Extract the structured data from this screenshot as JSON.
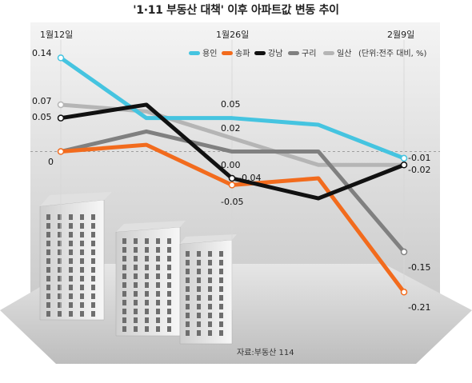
{
  "title": "'1·11 부동산 대책' 이후 아파트값 변동 추이",
  "unit_note": "(단위:전주 대비, %)",
  "source": "자료:부동산 114",
  "chart_data": {
    "type": "line",
    "title": "'1·11 부동산 대책' 이후 아파트값 변동 추이",
    "x": [
      "1월12일",
      "",
      "1월26일",
      "",
      "2월9일"
    ],
    "date_labels": [
      "1월12일",
      "1월26일",
      "2월9일"
    ],
    "ylabel": "(단위:전주 대비, %)",
    "ylim": [
      -0.23,
      0.15
    ],
    "grid": false,
    "legend_position": "top-right",
    "series": [
      {
        "name": "용인",
        "color": "#45c4e0",
        "values": [
          0.14,
          0.05,
          0.05,
          0.04,
          -0.01
        ]
      },
      {
        "name": "송파",
        "color": "#f26b1d",
        "values": [
          0.0,
          0.01,
          -0.05,
          -0.04,
          -0.21
        ]
      },
      {
        "name": "강남",
        "color": "#111111",
        "values": [
          0.05,
          0.07,
          -0.04,
          -0.07,
          -0.02
        ]
      },
      {
        "name": "구리",
        "color": "#808080",
        "values": [
          0.0,
          0.03,
          0.0,
          0.0,
          -0.15
        ]
      },
      {
        "name": "일산",
        "color": "#b5b5b5",
        "values": [
          0.07,
          0.06,
          0.02,
          -0.02,
          -0.02
        ]
      }
    ],
    "data_labels": [
      {
        "text": "0.14"
      },
      {
        "text": "0.07"
      },
      {
        "text": "0.05"
      },
      {
        "text": "0"
      },
      {
        "text": "0.05"
      },
      {
        "text": "0.02"
      },
      {
        "text": "0.00"
      },
      {
        "text": "-0.04"
      },
      {
        "text": "-0.05"
      },
      {
        "text": "-0.01"
      },
      {
        "text": "-0.02"
      },
      {
        "text": "-0.15"
      },
      {
        "text": "-0.21"
      }
    ]
  }
}
